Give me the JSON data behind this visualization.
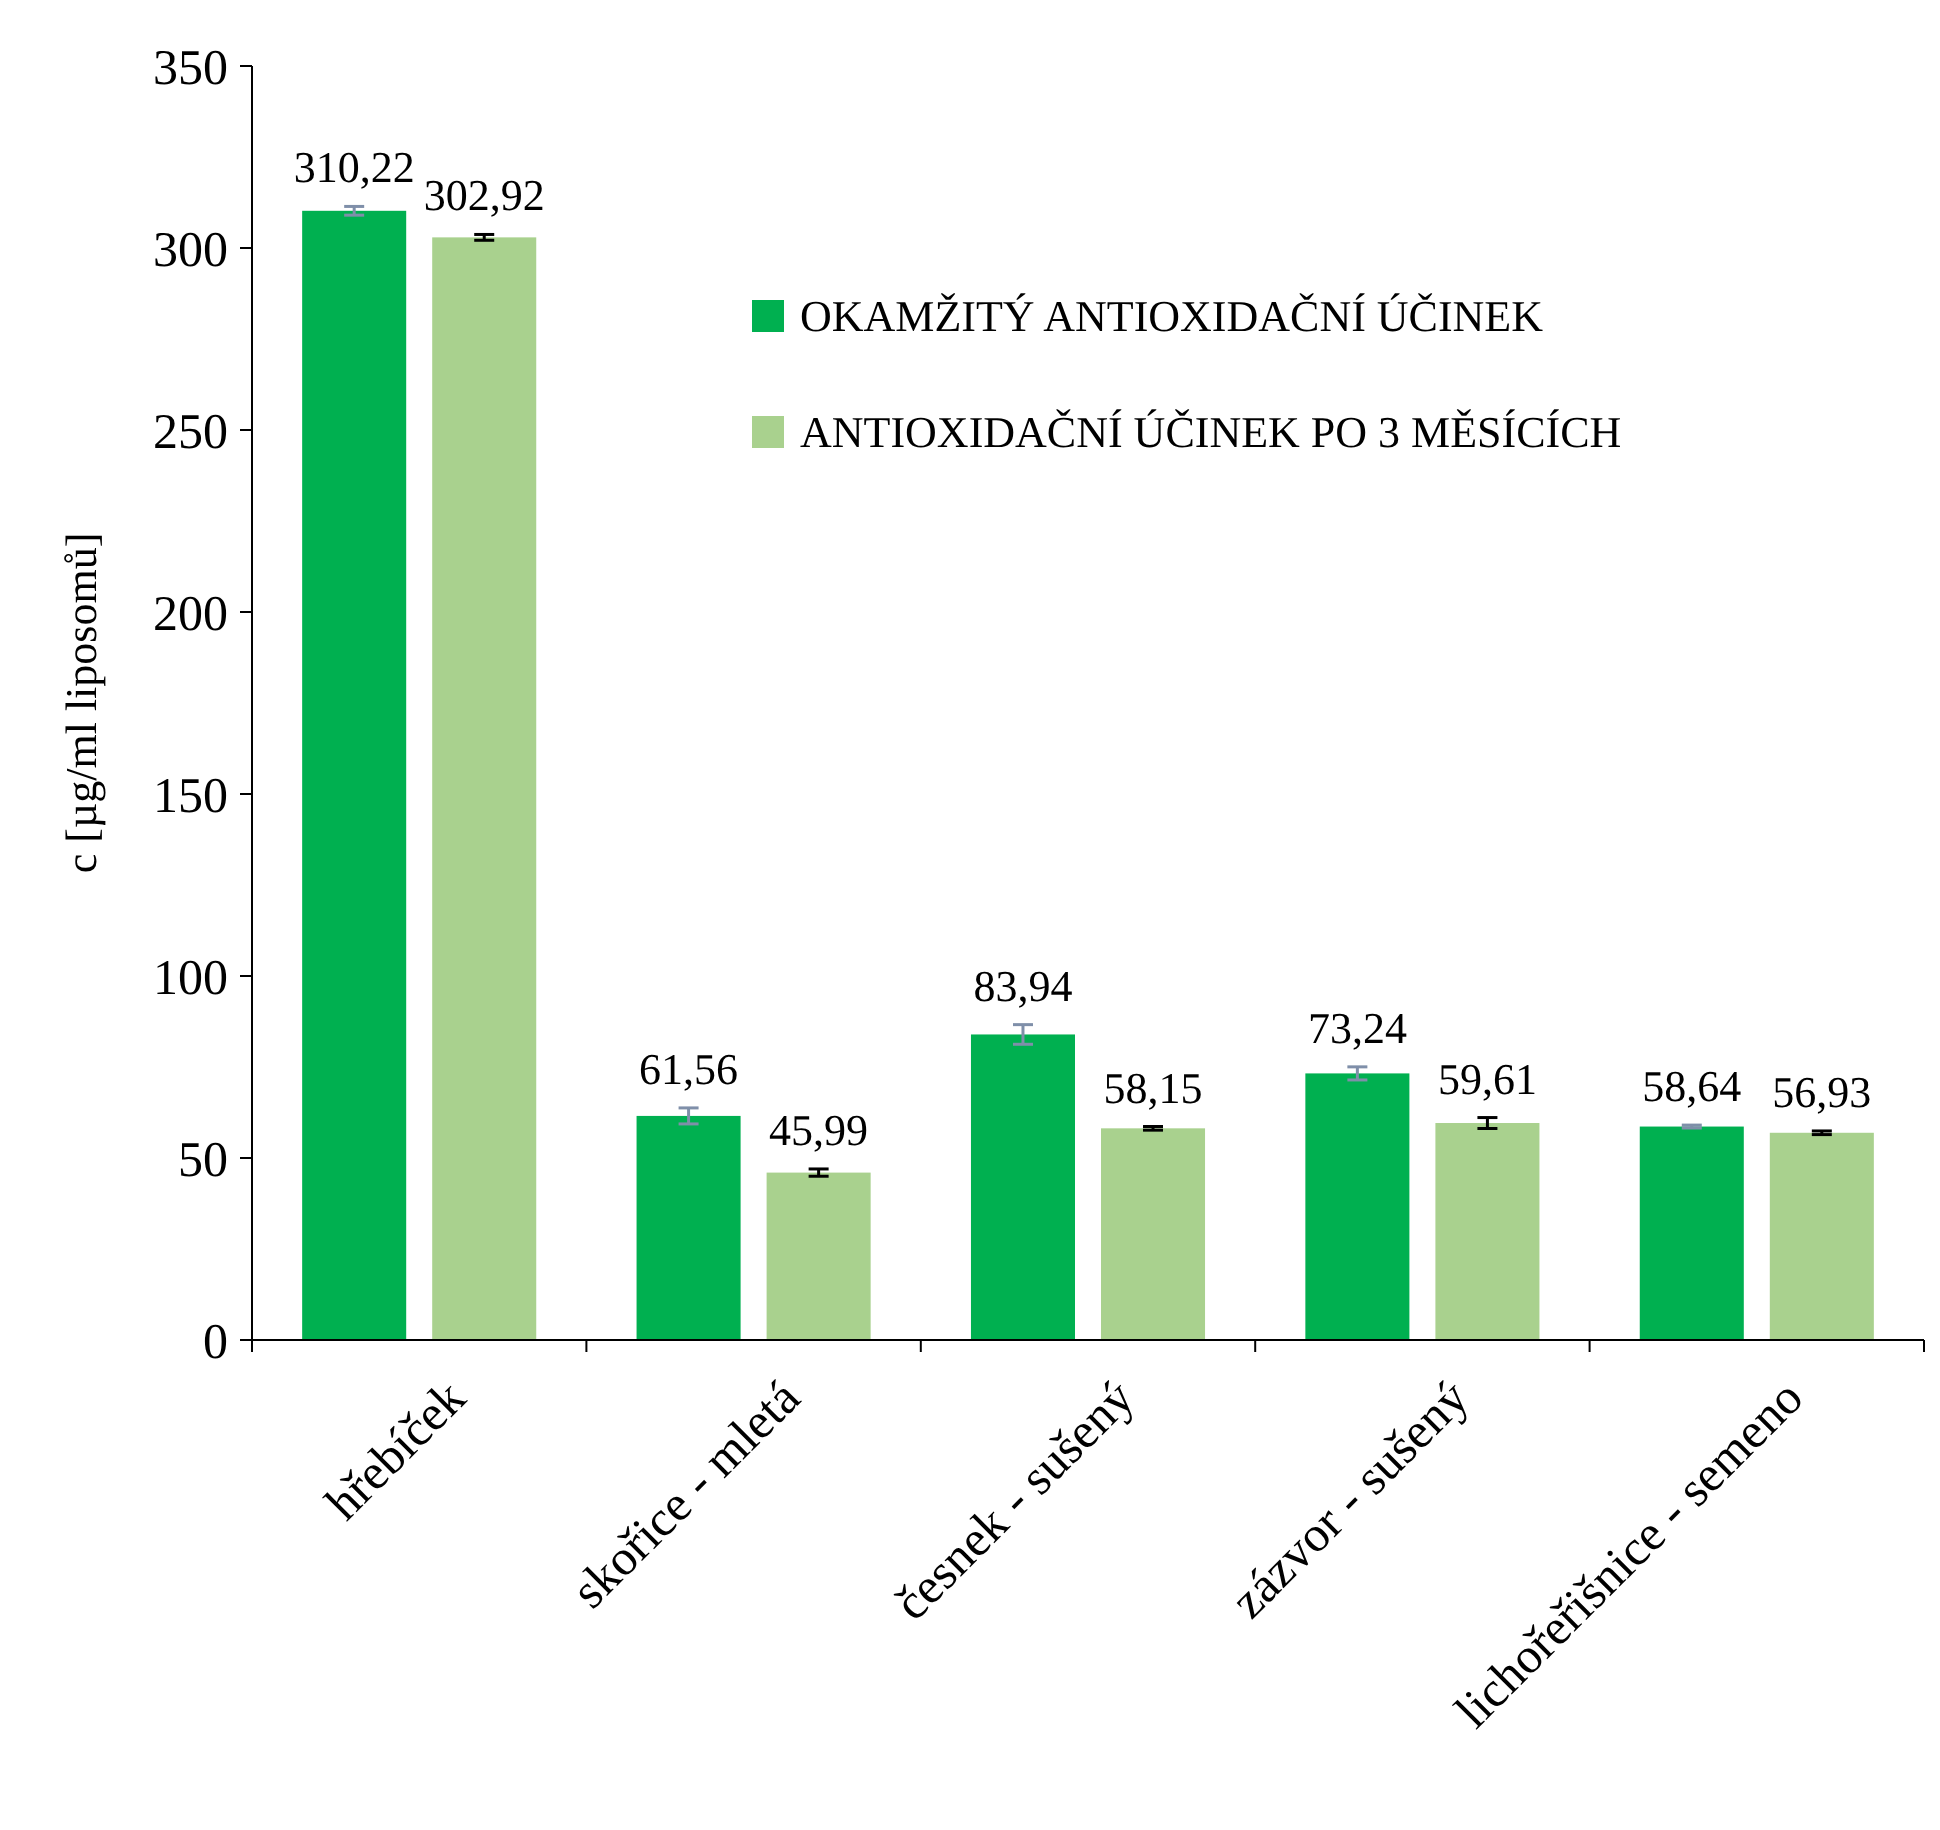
{
  "chart_data": {
    "type": "bar",
    "ylabel": "c [µg/ml liposomů]",
    "categories": [
      "hřebíček",
      "skořice - mletá",
      "česnek - sušený",
      "zázvor - sušený",
      "lichořeřišnice - semeno"
    ],
    "series": [
      {
        "name": "OKAMŽITÝ ANTIOXIDAČNÍ ÚČINEK",
        "color": "#00b050",
        "values": [
          310.22,
          61.56,
          83.94,
          73.24,
          58.64
        ],
        "value_labels": [
          "310,22",
          "61,56",
          "83,94",
          "73,24",
          "58,64"
        ],
        "errors": [
          1.2,
          2.2,
          2.7,
          1.8,
          0.4
        ]
      },
      {
        "name": "ANTIOXIDAČNÍ ÚČINEK PO 3 MĚSÍCÍCH",
        "color": "#a9d18e",
        "values": [
          302.92,
          45.99,
          58.15,
          59.61,
          56.93
        ],
        "value_labels": [
          "302,92",
          "45,99",
          "58,15",
          "59,61",
          "56,93"
        ],
        "errors": [
          0.8,
          1,
          0.5,
          1.5,
          0.5
        ]
      }
    ],
    "ylim": [
      0,
      350
    ],
    "yticks": [
      0,
      50,
      100,
      150,
      200,
      250,
      300,
      350
    ],
    "grid": false,
    "legend": "top right"
  }
}
